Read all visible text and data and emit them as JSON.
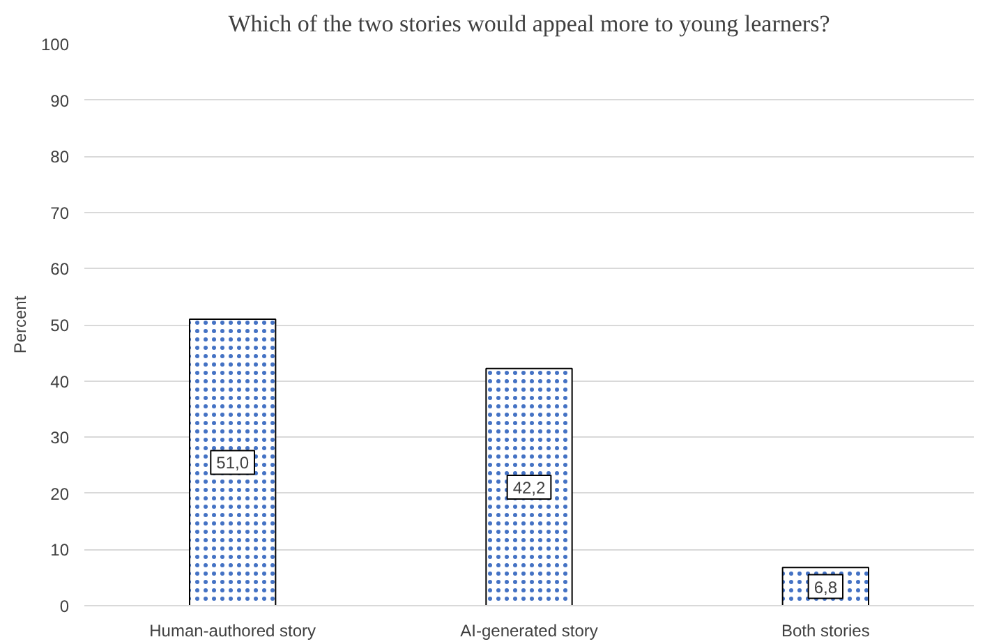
{
  "chart_data": {
    "type": "bar",
    "title": "Which of the two stories would appeal more to young learners?",
    "ylabel": "Percent",
    "categories": [
      "Human-authored story",
      "AI-generated story",
      "Both stories"
    ],
    "values": [
      51.0,
      42.2,
      6.8
    ],
    "color": "#ffffff",
    "value_labels": [
      "51,0",
      "42,2",
      "6,8"
    ],
    "ylim": [
      0,
      100
    ],
    "yticks": [
      0,
      10,
      20,
      30,
      40,
      50,
      60,
      70,
      80,
      90,
      100
    ],
    "grid": "y"
  }
}
